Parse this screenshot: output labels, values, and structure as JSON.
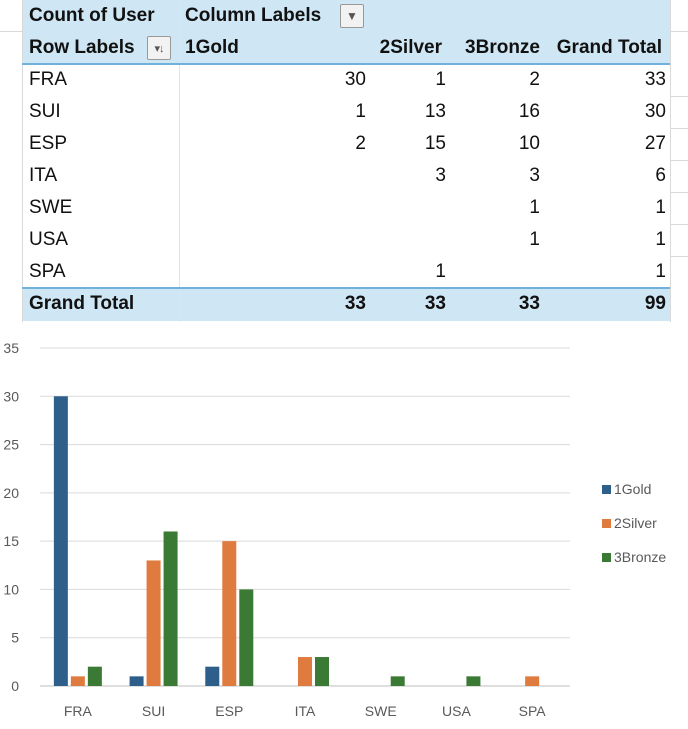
{
  "pivot": {
    "corner_label": "Count of User",
    "column_labels": "Column Labels",
    "row_labels": "Row Labels",
    "columns": [
      "1Gold",
      "2Silver",
      "3Bronze",
      "Grand Total"
    ],
    "rows": [
      {
        "label": "FRA",
        "values": [
          "30",
          "1",
          "2",
          "33"
        ]
      },
      {
        "label": "SUI",
        "values": [
          "1",
          "13",
          "16",
          "30"
        ]
      },
      {
        "label": "ESP",
        "values": [
          "2",
          "15",
          "10",
          "27"
        ]
      },
      {
        "label": "ITA",
        "values": [
          "",
          "3",
          "3",
          "6"
        ]
      },
      {
        "label": "SWE",
        "values": [
          "",
          "",
          "1",
          "1"
        ]
      },
      {
        "label": "USA",
        "values": [
          "",
          "",
          "1",
          "1"
        ]
      },
      {
        "label": "SPA",
        "values": [
          "",
          "1",
          "",
          "1"
        ]
      }
    ],
    "grand_total": {
      "label": "Grand Total",
      "values": [
        "33",
        "33",
        "33",
        "99"
      ]
    }
  },
  "chart_data": {
    "type": "bar",
    "categories": [
      "FRA",
      "SUI",
      "ESP",
      "ITA",
      "SWE",
      "USA",
      "SPA"
    ],
    "series": [
      {
        "name": "1Gold",
        "color": "#2e5f8a",
        "values": [
          30,
          1,
          2,
          0,
          0,
          0,
          0
        ]
      },
      {
        "name": "2Silver",
        "color": "#e07b3f",
        "values": [
          1,
          13,
          15,
          3,
          0,
          0,
          1
        ]
      },
      {
        "name": "3Bronze",
        "color": "#3a7a34",
        "values": [
          2,
          16,
          10,
          3,
          1,
          1,
          0
        ]
      }
    ],
    "yticks": [
      "0",
      "5",
      "10",
      "15",
      "20",
      "25",
      "30",
      "35"
    ],
    "ylim": [
      0,
      35
    ],
    "grid": true,
    "legend_position": "right"
  }
}
